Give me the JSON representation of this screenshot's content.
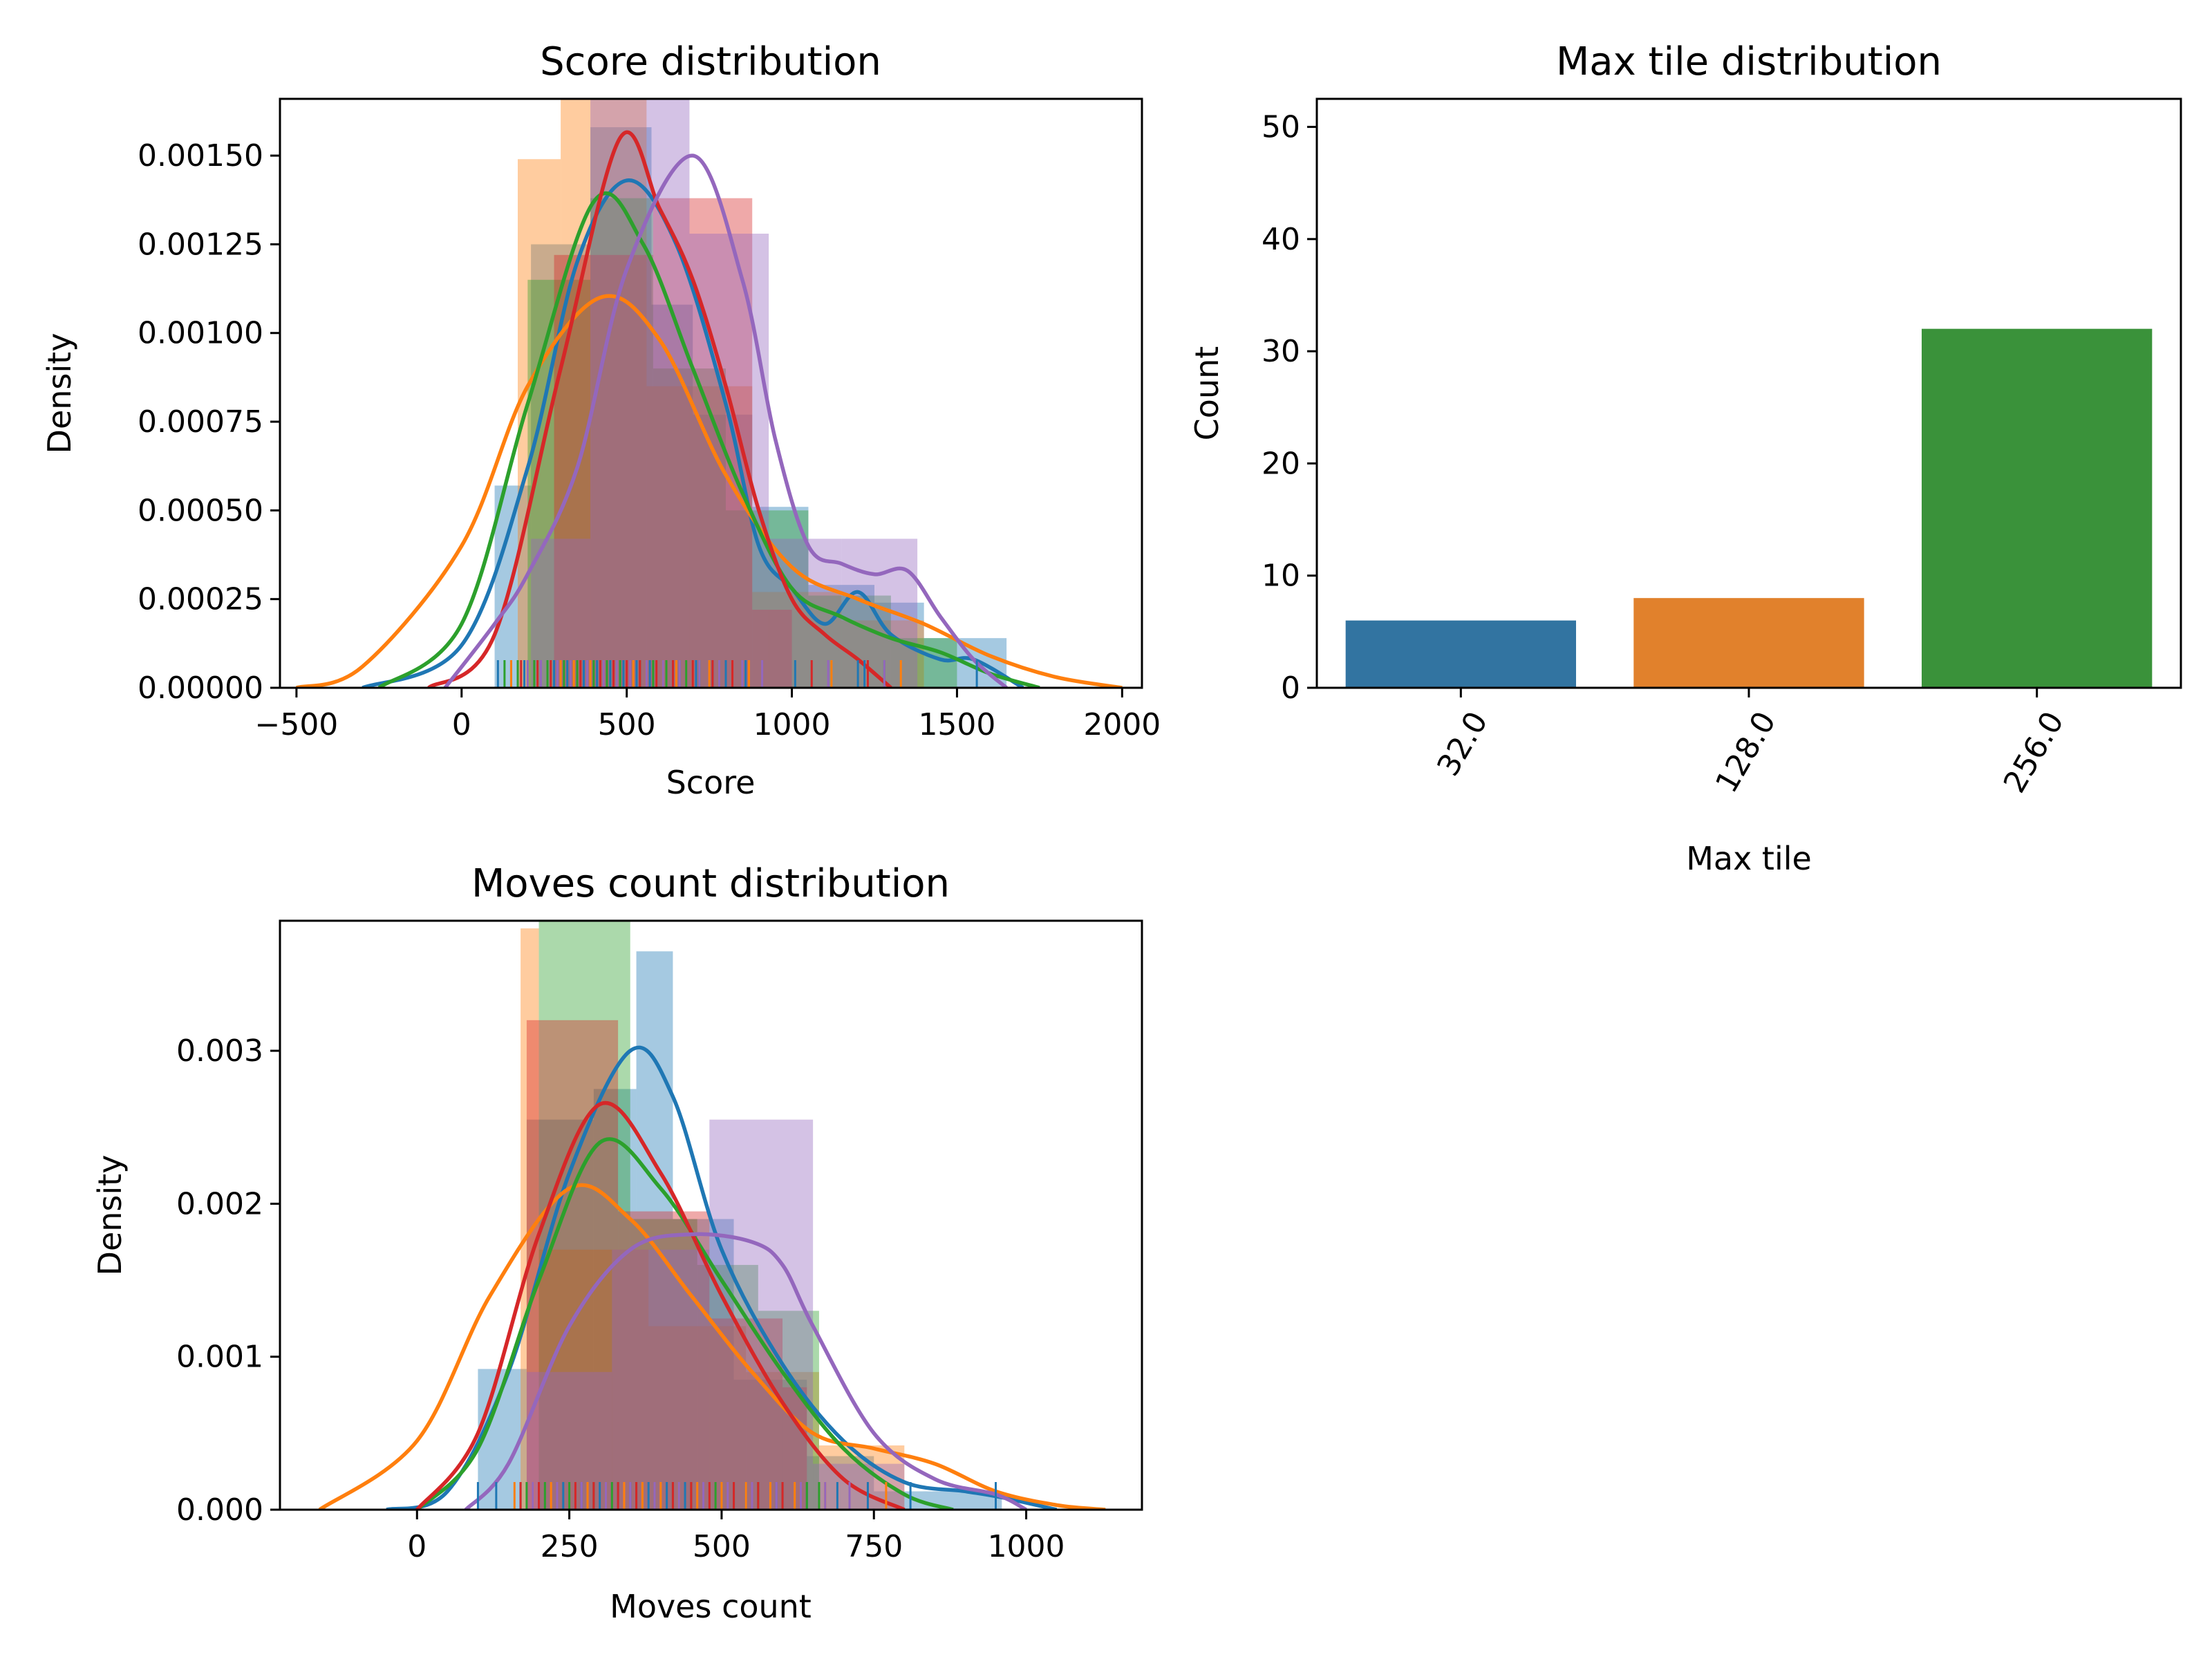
{
  "palette": [
    "#1f77b4",
    "#ff7f0e",
    "#2ca02c",
    "#d62728",
    "#9467bd"
  ],
  "chart_data": [
    {
      "id": "score",
      "type": "histogram",
      "title": "Score distribution",
      "xlabel": "Score",
      "ylabel": "Density",
      "xlim": [
        -550,
        2060
      ],
      "ylim": [
        0,
        0.00166
      ],
      "xticks": [
        -500,
        0,
        500,
        1000,
        1500,
        2000
      ],
      "xtick_labels": [
        "−500",
        "0",
        "500",
        "1000",
        "1500",
        "2000"
      ],
      "yticks": [
        0,
        0.00025,
        0.0005,
        0.00075,
        0.001,
        0.00125,
        0.0015
      ],
      "ytick_labels": [
        "0.00000",
        "0.00025",
        "0.00050",
        "0.00075",
        "0.00100",
        "0.00125",
        "0.00150"
      ],
      "series": [
        {
          "color": "#1f77b4",
          "bins": [
            [
              100,
              210,
              0.00057
            ],
            [
              210,
              390,
              0.00125
            ],
            [
              390,
              575,
              0.00158
            ],
            [
              575,
              700,
              0.00108
            ],
            [
              700,
              880,
              0.00077
            ],
            [
              880,
              1050,
              0.00051
            ],
            [
              1050,
              1250,
              0.00029
            ],
            [
              1250,
              1400,
              0.00024
            ],
            [
              1400,
              1650,
              0.00014
            ]
          ],
          "kde": [
            [
              -300,
              0
            ],
            [
              0,
              0.00012
            ],
            [
              200,
              0.00062
            ],
            [
              350,
              0.0012
            ],
            [
              500,
              0.00143
            ],
            [
              650,
              0.00125
            ],
            [
              800,
              0.0008
            ],
            [
              900,
              0.0004
            ],
            [
              1000,
              0.00028
            ],
            [
              1100,
              0.00018
            ],
            [
              1200,
              0.00027
            ],
            [
              1300,
              0.00015
            ],
            [
              1450,
              8e-05
            ],
            [
              1550,
              8e-05
            ],
            [
              1700,
              0
            ]
          ],
          "rug": [
            110,
            150,
            190,
            240,
            280,
            320,
            370,
            410,
            450,
            490,
            530,
            570,
            620,
            660,
            710,
            760,
            800,
            860,
            1010,
            1200,
            1220,
            1560
          ]
        },
        {
          "color": "#ff7f0e",
          "bins": [
            [
              170,
              300,
              0.00149
            ],
            [
              300,
              560,
              0.00166
            ],
            [
              560,
              880,
              0.00085
            ],
            [
              880,
              1150,
              0.00027
            ],
            [
              1150,
              1400,
              0.00019
            ]
          ],
          "kde": [
            [
              -500,
              0
            ],
            [
              -300,
              6e-05
            ],
            [
              0,
              0.0004
            ],
            [
              200,
              0.00085
            ],
            [
              420,
              0.0011
            ],
            [
              600,
              0.00098
            ],
            [
              800,
              0.0006
            ],
            [
              1000,
              0.00034
            ],
            [
              1200,
              0.00025
            ],
            [
              1400,
              0.00018
            ],
            [
              1600,
              9e-05
            ],
            [
              1800,
              3e-05
            ],
            [
              2000,
              0
            ]
          ],
          "rug": [
            150,
            200,
            260,
            300,
            340,
            390,
            430,
            470,
            520,
            560,
            610,
            650,
            700,
            750,
            780,
            820,
            870,
            1120,
            1330
          ]
        },
        {
          "color": "#2ca02c",
          "bins": [
            [
              200,
              390,
              0.00115
            ],
            [
              390,
              580,
              0.00138
            ],
            [
              580,
              800,
              0.0009
            ],
            [
              800,
              1050,
              0.0005
            ],
            [
              1050,
              1300,
              0.00026
            ],
            [
              1300,
              1500,
              0.00014
            ]
          ],
          "kde": [
            [
              -250,
              0
            ],
            [
              0,
              0.00018
            ],
            [
              200,
              0.0008
            ],
            [
              400,
              0.00137
            ],
            [
              550,
              0.00125
            ],
            [
              700,
              0.0009
            ],
            [
              850,
              0.00055
            ],
            [
              1000,
              0.00028
            ],
            [
              1150,
              0.0002
            ],
            [
              1300,
              0.00014
            ],
            [
              1450,
              0.0001
            ],
            [
              1600,
              4e-05
            ],
            [
              1750,
              0
            ]
          ],
          "rug": [
            130,
            170,
            220,
            260,
            310,
            350,
            400,
            440,
            480,
            540,
            580,
            620,
            680,
            720,
            780,
            1280
          ]
        },
        {
          "color": "#d62728",
          "bins": [
            [
              280,
              580,
              0.00122
            ],
            [
              580,
              880,
              0.00138
            ],
            [
              880,
              1000,
              0.00022
            ]
          ],
          "kde": [
            [
              -100,
              0
            ],
            [
              100,
              0.00015
            ],
            [
              300,
              0.0009
            ],
            [
              480,
              0.00155
            ],
            [
              600,
              0.00135
            ],
            [
              700,
              0.00115
            ],
            [
              800,
              0.00085
            ],
            [
              900,
              0.0005
            ],
            [
              1000,
              0.00025
            ],
            [
              1100,
              0.00015
            ],
            [
              1200,
              8e-05
            ],
            [
              1300,
              0
            ]
          ],
          "rug": [
            180,
            230,
            270,
            330,
            360,
            420,
            460,
            500,
            540,
            590,
            640,
            700,
            760,
            820,
            1060,
            1230
          ]
        },
        {
          "color": "#9467bd",
          "bins": [
            [
              210,
              390,
              0.00042
            ],
            [
              390,
              690,
              0.00166
            ],
            [
              690,
              930,
              0.00128
            ],
            [
              930,
              1150,
              0.00042
            ],
            [
              1150,
              1380,
              0.00042
            ]
          ],
          "kde": [
            [
              -50,
              0
            ],
            [
              100,
              0.00018
            ],
            [
              200,
              0.00032
            ],
            [
              350,
              0.00062
            ],
            [
              500,
              0.00118
            ],
            [
              700,
              0.0015
            ],
            [
              850,
              0.00115
            ],
            [
              950,
              0.0007
            ],
            [
              1050,
              0.0004
            ],
            [
              1150,
              0.00035
            ],
            [
              1250,
              0.00032
            ],
            [
              1350,
              0.00033
            ],
            [
              1450,
              0.0002
            ],
            [
              1550,
              8e-05
            ],
            [
              1650,
              0
            ]
          ],
          "rug": [
            200,
            240,
            290,
            330,
            380,
            430,
            470,
            510,
            560,
            610,
            660,
            720,
            780,
            850,
            910,
            1110,
            1280
          ]
        }
      ]
    },
    {
      "id": "maxtile",
      "type": "bar",
      "title": "Max tile distribution",
      "xlabel": "Max tile",
      "ylabel": "Count",
      "categories": [
        "32.0",
        "128.0",
        "256.0"
      ],
      "values": [
        6,
        8,
        32
      ],
      "colors": [
        "#3274a1",
        "#e1812c",
        "#3a923a"
      ],
      "ylim": [
        0,
        52.5
      ],
      "yticks": [
        0,
        10,
        20,
        30,
        40,
        50
      ],
      "ytick_labels": [
        "0",
        "10",
        "20",
        "30",
        "40",
        "50"
      ]
    },
    {
      "id": "moves",
      "type": "histogram",
      "title": "Moves count distribution",
      "xlabel": "Moves count",
      "ylabel": "Density",
      "xlim": [
        -225,
        1190
      ],
      "ylim": [
        0,
        0.00385
      ],
      "xticks": [
        0,
        250,
        500,
        750,
        1000
      ],
      "xtick_labels": [
        "0",
        "250",
        "500",
        "750",
        "1000"
      ],
      "yticks": [
        0,
        0.001,
        0.002,
        0.003
      ],
      "ytick_labels": [
        "0.000",
        "0.001",
        "0.002",
        "0.003"
      ],
      "series": [
        {
          "color": "#1f77b4",
          "bins": [
            [
              100,
              180,
              0.00092
            ],
            [
              180,
              290,
              0.00255
            ],
            [
              290,
              360,
              0.00275
            ],
            [
              360,
              420,
              0.00365
            ],
            [
              420,
              520,
              0.0019
            ],
            [
              520,
              640,
              0.00085
            ],
            [
              640,
              750,
              0.00035
            ],
            [
              750,
              960,
              0.00012
            ]
          ],
          "kde": [
            [
              -50,
              0
            ],
            [
              50,
              0.00012
            ],
            [
              150,
              0.0009
            ],
            [
              250,
              0.0022
            ],
            [
              350,
              0.003
            ],
            [
              420,
              0.0027
            ],
            [
              500,
              0.0017
            ],
            [
              600,
              0.00095
            ],
            [
              700,
              0.00045
            ],
            [
              800,
              0.00018
            ],
            [
              900,
              0.00012
            ],
            [
              960,
              8e-05
            ],
            [
              1050,
              0
            ]
          ],
          "rug": [
            100,
            130,
            170,
            200,
            240,
            270,
            300,
            330,
            350,
            380,
            410,
            440,
            470,
            500,
            540,
            590,
            640,
            690,
            740,
            810,
            950
          ]
        },
        {
          "color": "#ff7f0e",
          "bins": [
            [
              170,
              200,
              0.0038
            ],
            [
              200,
              380,
              0.0017
            ],
            [
              380,
              540,
              0.0012
            ],
            [
              540,
              660,
              0.0009
            ],
            [
              660,
              800,
              0.00042
            ]
          ],
          "kde": [
            [
              -160,
              0
            ],
            [
              0,
              0.00045
            ],
            [
              120,
              0.0014
            ],
            [
              250,
              0.0021
            ],
            [
              350,
              0.0019
            ],
            [
              450,
              0.0014
            ],
            [
              550,
              0.0009
            ],
            [
              650,
              0.0005
            ],
            [
              750,
              0.0004
            ],
            [
              850,
              0.0003
            ],
            [
              950,
              0.00012
            ],
            [
              1050,
              3e-05
            ],
            [
              1130,
              0
            ]
          ],
          "rug": [
            160,
            190,
            220,
            250,
            280,
            310,
            340,
            370,
            400,
            430,
            460,
            500,
            540,
            580,
            620,
            670,
            710,
            770
          ]
        },
        {
          "color": "#2ca02c",
          "bins": [
            [
              200,
              350,
              0.00385
            ],
            [
              350,
              460,
              0.0019
            ],
            [
              460,
              560,
              0.0016
            ],
            [
              560,
              660,
              0.0013
            ]
          ],
          "kde": [
            [
              0,
              0
            ],
            [
              100,
              0.0004
            ],
            [
              200,
              0.0015
            ],
            [
              300,
              0.0024
            ],
            [
              400,
              0.0021
            ],
            [
              500,
              0.0015
            ],
            [
              600,
              0.0009
            ],
            [
              700,
              0.0004
            ],
            [
              800,
              0.0001
            ],
            [
              880,
              0
            ]
          ],
          "rug": [
            180,
            210,
            250,
            290,
            320,
            360,
            390,
            420,
            450,
            490,
            520,
            560,
            600,
            640,
            660
          ]
        },
        {
          "color": "#d62728",
          "bins": [
            [
              180,
              330,
              0.0032
            ],
            [
              330,
              480,
              0.00195
            ],
            [
              480,
              600,
              0.00125
            ],
            [
              600,
              640,
              0.0008
            ]
          ],
          "kde": [
            [
              0,
              0
            ],
            [
              100,
              0.0005
            ],
            [
              200,
              0.0018
            ],
            [
              300,
              0.00265
            ],
            [
              400,
              0.0022
            ],
            [
              500,
              0.0014
            ],
            [
              600,
              0.0007
            ],
            [
              700,
              0.0002
            ],
            [
              800,
              0
            ]
          ],
          "rug": [
            170,
            200,
            230,
            260,
            290,
            330,
            360,
            390,
            420,
            450,
            480,
            520,
            560,
            600
          ]
        },
        {
          "color": "#9467bd",
          "bins": [
            [
              180,
              320,
              0.0009
            ],
            [
              320,
              480,
              0.0017
            ],
            [
              480,
              650,
              0.00255
            ],
            [
              650,
              800,
              0.0003
            ]
          ],
          "kde": [
            [
              80,
              0
            ],
            [
              150,
              0.0003
            ],
            [
              250,
              0.0012
            ],
            [
              350,
              0.0017
            ],
            [
              450,
              0.0018
            ],
            [
              550,
              0.00175
            ],
            [
              600,
              0.0016
            ],
            [
              650,
              0.0012
            ],
            [
              750,
              0.0005
            ],
            [
              850,
              0.0002
            ],
            [
              950,
              0.0001
            ],
            [
              1000,
              0
            ]
          ],
          "rug": [
            190,
            230,
            270,
            310,
            350,
            390,
            430,
            470,
            510,
            550,
            590,
            630,
            670,
            710
          ]
        }
      ]
    }
  ]
}
